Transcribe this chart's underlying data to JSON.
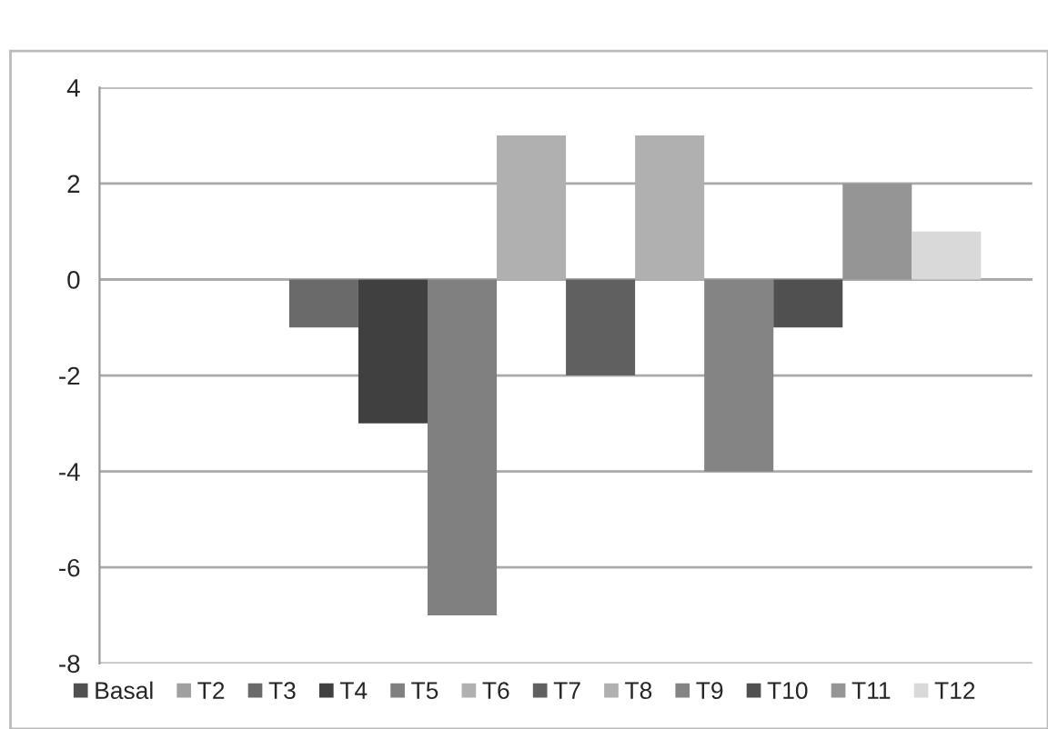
{
  "chart_data": {
    "type": "bar",
    "categories": [
      null
    ],
    "series": [
      {
        "name": "Basal",
        "color": "#505050",
        "values": [
          0
        ]
      },
      {
        "name": "T2",
        "color": "#a0a0a0",
        "values": [
          0
        ]
      },
      {
        "name": "T3",
        "color": "#6a6a6a",
        "values": [
          -1
        ]
      },
      {
        "name": "T4",
        "color": "#404040",
        "values": [
          -3
        ]
      },
      {
        "name": "T5",
        "color": "#808080",
        "values": [
          -7
        ]
      },
      {
        "name": "T6",
        "color": "#b0b0b0",
        "values": [
          3
        ]
      },
      {
        "name": "T7",
        "color": "#606060",
        "values": [
          -2
        ]
      },
      {
        "name": "T8",
        "color": "#b0b0b0",
        "values": [
          3
        ]
      },
      {
        "name": "T9",
        "color": "#848484",
        "values": [
          -4
        ]
      },
      {
        "name": "T10",
        "color": "#505050",
        "values": [
          -1
        ]
      },
      {
        "name": "T11",
        "color": "#959595",
        "values": [
          2
        ]
      },
      {
        "name": "T12",
        "color": "#d9d9d9",
        "values": [
          1
        ]
      }
    ],
    "ylim": [
      -8,
      4
    ],
    "yticks": [
      -8,
      -6,
      -4,
      -2,
      0,
      2,
      4
    ],
    "grid": "y",
    "legend": "bottom"
  }
}
